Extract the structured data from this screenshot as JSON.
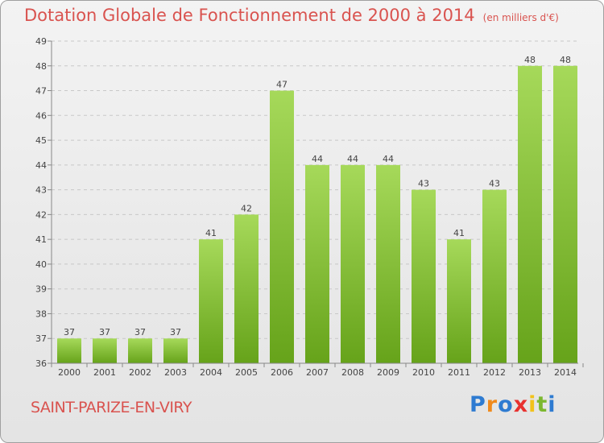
{
  "title": "Dotation Globale de Fonctionnement de 2000 à 2014",
  "subtitle": "(en milliers d'€)",
  "place": "SAINT-PARIZE-EN-VIRY",
  "logo": {
    "letters": [
      {
        "char": "P",
        "color": "#2e7bd1"
      },
      {
        "char": "r",
        "color": "#f08a1c"
      },
      {
        "char": "o",
        "color": "#2e7bd1"
      },
      {
        "char": "x",
        "color": "#e8312f"
      },
      {
        "char": "i",
        "color": "#f2c21b"
      },
      {
        "char": "t",
        "color": "#7cb82f"
      },
      {
        "char": "i",
        "color": "#2e7bd1"
      }
    ]
  },
  "colors": {
    "title": "#d9534f",
    "bar_top": "#a6d95a",
    "bar_bottom": "#66a31a",
    "grid": "#c8c8c8"
  },
  "chart_data": {
    "type": "bar",
    "categories": [
      "2000",
      "2001",
      "2002",
      "2003",
      "2004",
      "2005",
      "2006",
      "2007",
      "2008",
      "2009",
      "2010",
      "2011",
      "2012",
      "2013",
      "2014"
    ],
    "values": [
      37,
      37,
      37,
      37,
      41,
      42,
      47,
      44,
      44,
      44,
      43,
      41,
      43,
      48,
      48
    ],
    "ylim": [
      36,
      49
    ],
    "yticks": [
      36,
      37,
      38,
      39,
      40,
      41,
      42,
      43,
      44,
      45,
      46,
      47,
      48,
      49
    ],
    "grid": true,
    "xlabel": "",
    "ylabel": ""
  }
}
